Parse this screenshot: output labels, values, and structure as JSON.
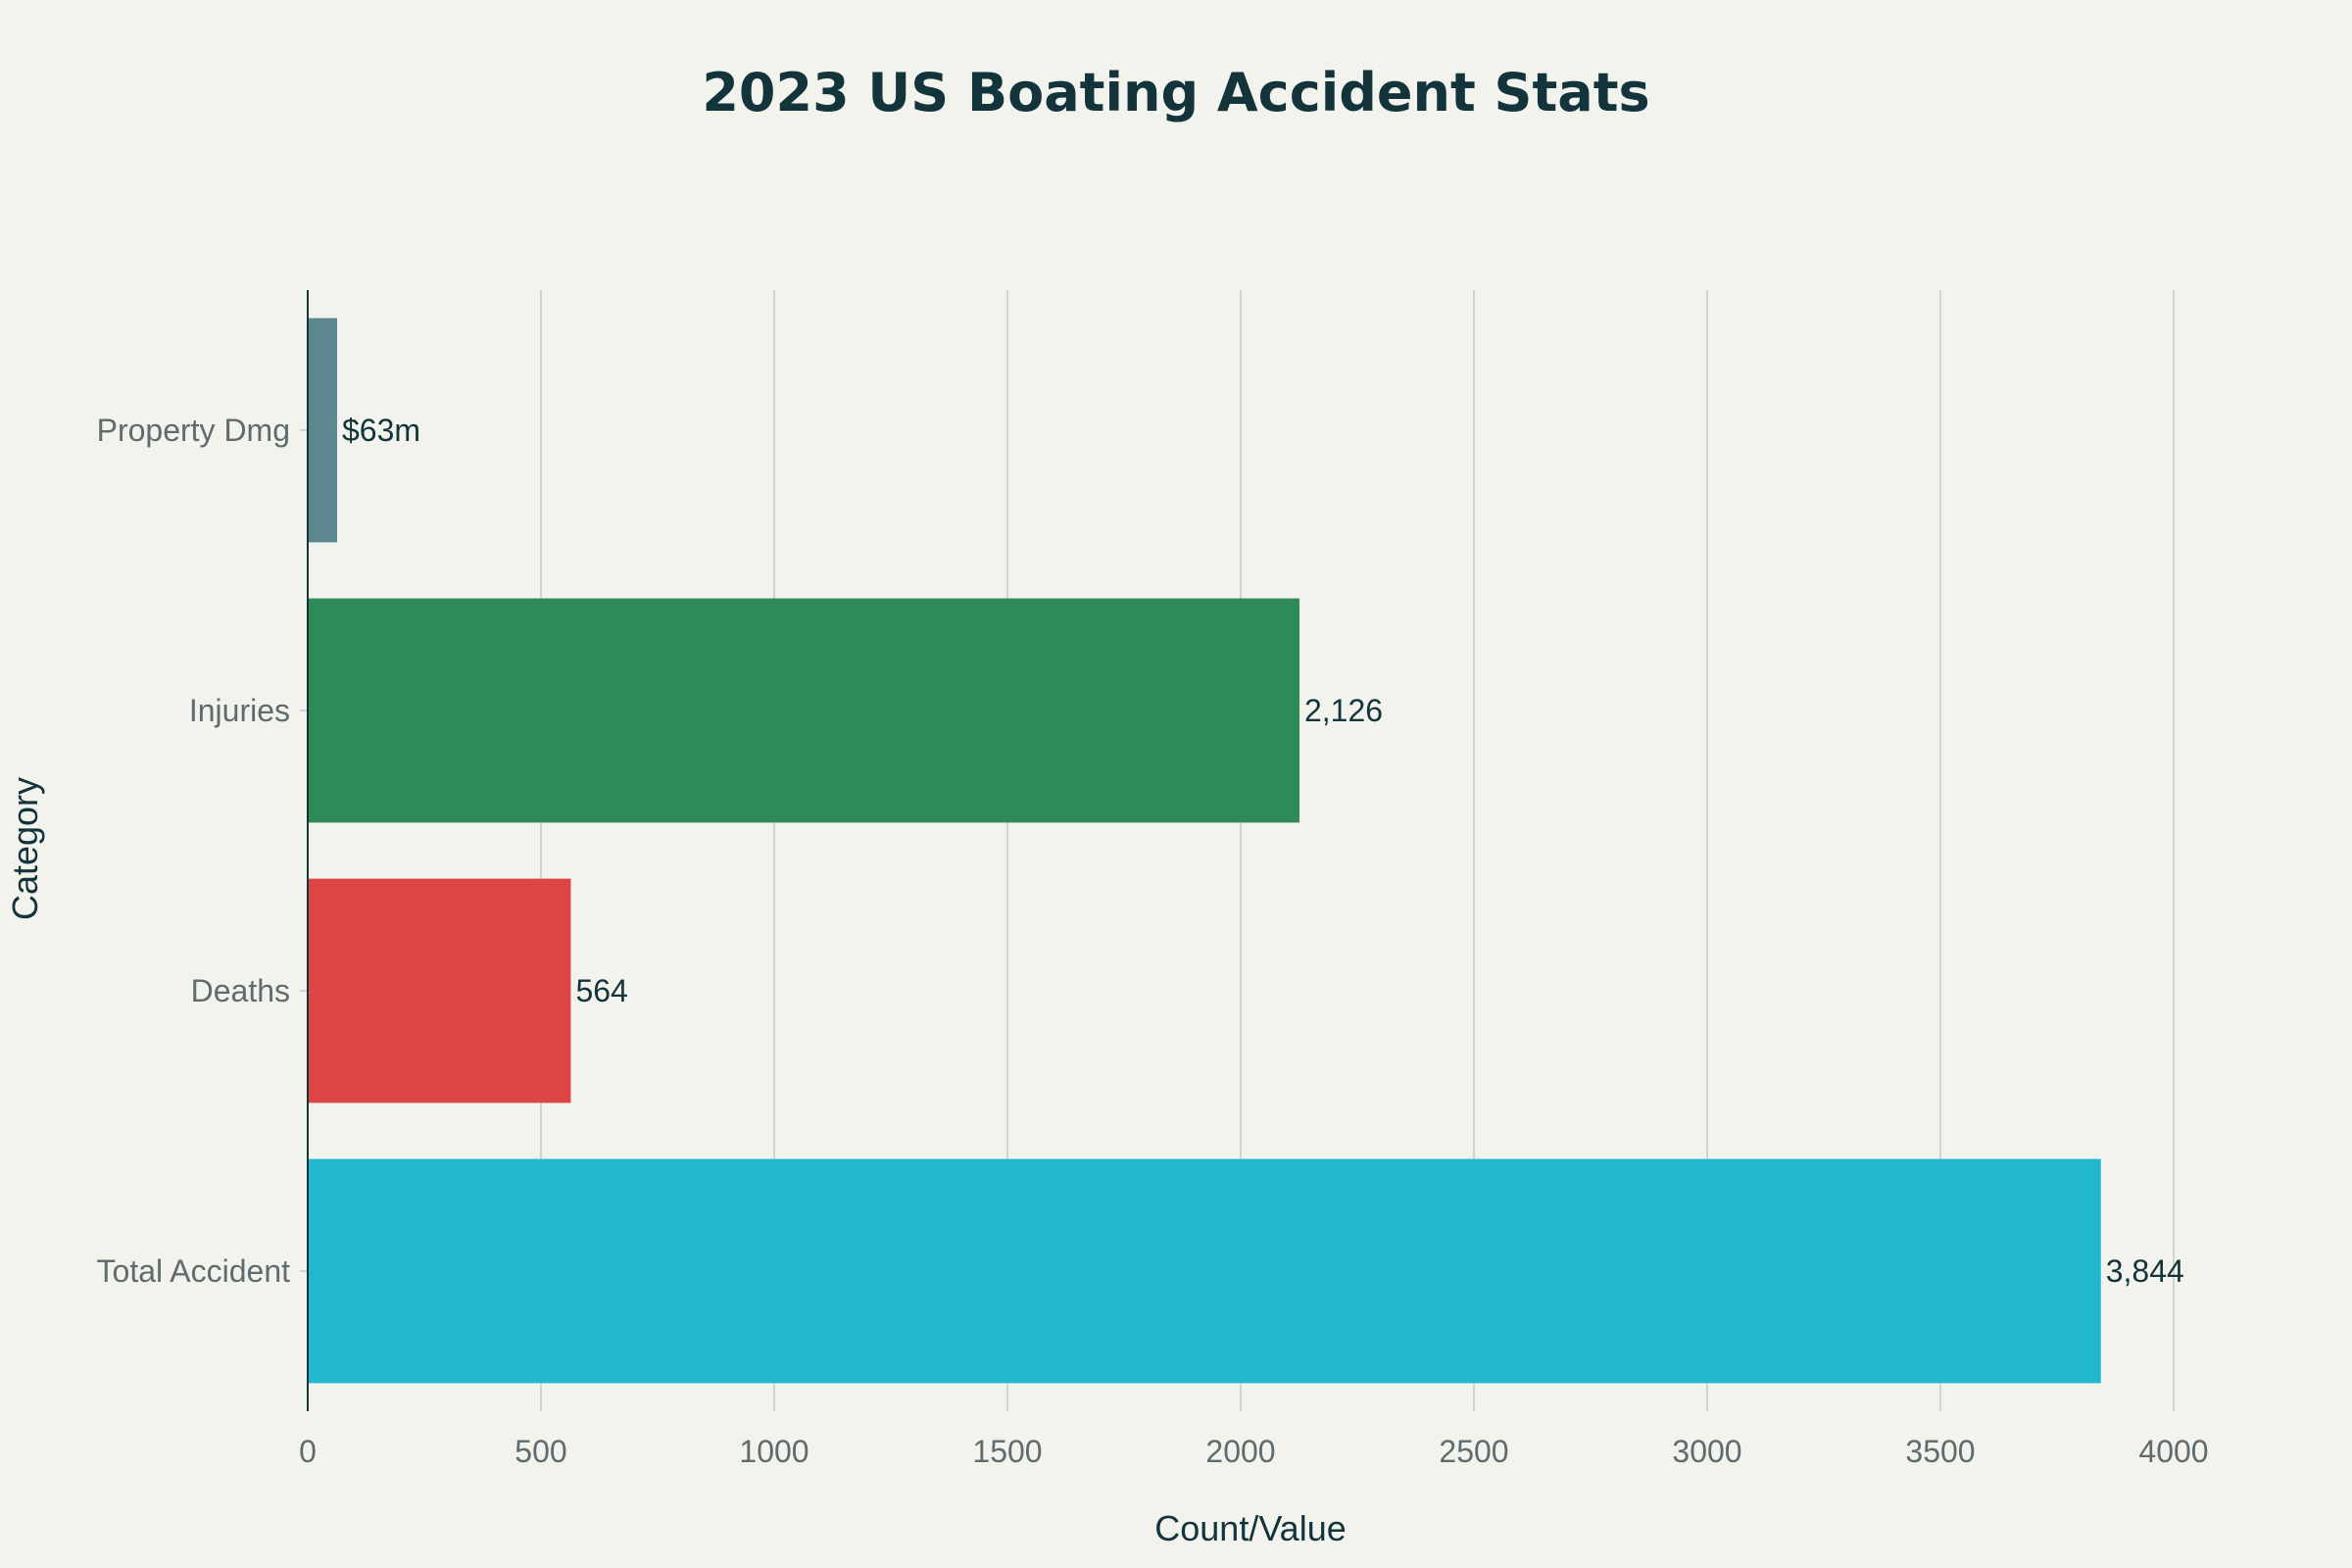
{
  "chart_data": {
    "type": "bar",
    "orientation": "horizontal",
    "title": "2023 US Boating Accident Stats",
    "xlabel": "Count/Value",
    "ylabel": "Category",
    "xlim": [
      0,
      4000
    ],
    "xticks": [
      0,
      500,
      1000,
      1500,
      2000,
      2500,
      3000,
      3500,
      4000
    ],
    "xtick_labels": [
      "0",
      "500",
      "1000",
      "1500",
      "2000",
      "2500",
      "3000",
      "3500",
      "4000"
    ],
    "grid": true,
    "categories": [
      "Total Accident",
      "Deaths",
      "Injuries",
      "Property Dmg"
    ],
    "values": [
      3844,
      564,
      2126,
      63
    ],
    "data_labels": [
      "3,844",
      "564",
      "2,126",
      "$63m"
    ],
    "colors": [
      "#21b7cd",
      "#db4545",
      "#2e8b57",
      "#5d878f"
    ]
  },
  "theme": {
    "background": "#f3f3ee",
    "grid_color": "#d3d3cf",
    "axis_color": "#13343b",
    "text_color": "#13343b",
    "tick_color": "#5f6b6d"
  }
}
